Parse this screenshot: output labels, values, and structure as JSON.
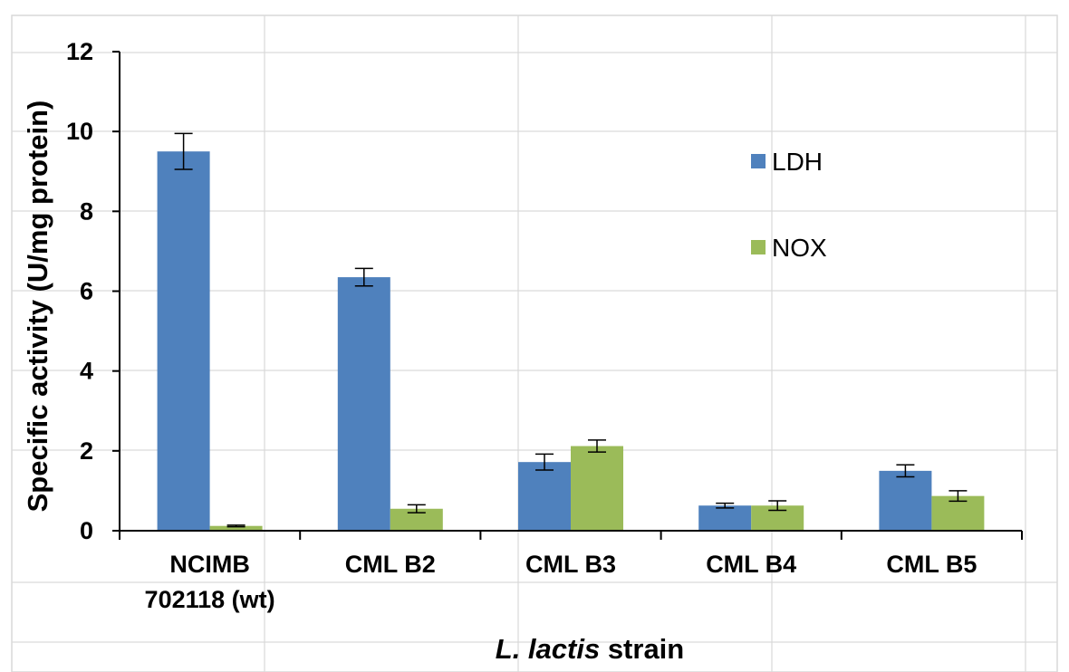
{
  "chart_data": {
    "type": "bar",
    "categories": [
      [
        "NCIMB",
        "702118 (wt)"
      ],
      [
        "CML B2"
      ],
      [
        "CML B3"
      ],
      [
        "CML B4"
      ],
      [
        "CML B5"
      ]
    ],
    "series": [
      {
        "name": "LDH",
        "color": "#4f81bd",
        "values": [
          9.5,
          6.35,
          1.72,
          0.63,
          1.5
        ],
        "errors": [
          0.45,
          0.22,
          0.2,
          0.06,
          0.15
        ]
      },
      {
        "name": "NOX",
        "color": "#9bbb59",
        "values": [
          0.12,
          0.55,
          2.12,
          0.63,
          0.87
        ],
        "errors": [
          0.02,
          0.1,
          0.15,
          0.12,
          0.13
        ]
      }
    ],
    "ylabel": "Specific activity (U/mg protein)",
    "xlabel_italic": "L. lactis",
    "xlabel_rest": " strain",
    "ylim": [
      0,
      12
    ],
    "yticks": [
      0,
      2,
      4,
      6,
      8,
      10,
      12
    ],
    "grid": true,
    "legend_position": "right"
  }
}
